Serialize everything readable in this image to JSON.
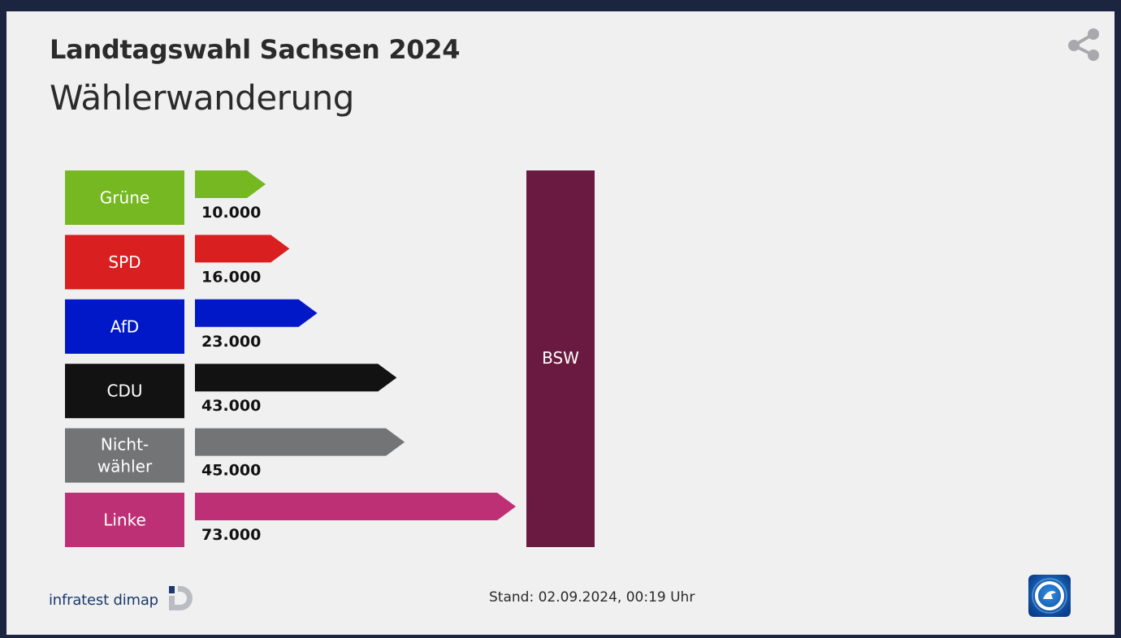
{
  "header": {
    "title": "Landtagswahl Sachsen 2024",
    "subtitle": "Wählerwanderung"
  },
  "icons": {
    "share": "share-icon",
    "brand_logo": "infratest-dimap-logo",
    "broadcaster_logo": "tagesschau-logo"
  },
  "chart_data": {
    "type": "bar",
    "orientation": "horizontal",
    "target": "BSW",
    "target_color": "#6a1a40",
    "categories": [
      {
        "label_lines": [
          "Grüne"
        ],
        "value": 10000,
        "value_label": "10.000",
        "color": "#76b821"
      },
      {
        "label_lines": [
          "SPD"
        ],
        "value": 16000,
        "value_label": "16.000",
        "color": "#d91f1f"
      },
      {
        "label_lines": [
          "AfD"
        ],
        "value": 23000,
        "value_label": "23.000",
        "color": "#0018c8"
      },
      {
        "label_lines": [
          "CDU"
        ],
        "value": 43000,
        "value_label": "43.000",
        "color": "#121212"
      },
      {
        "label_lines": [
          "Nicht-",
          "wähler"
        ],
        "value": 45000,
        "value_label": "45.000",
        "color": "#737475"
      },
      {
        "label_lines": [
          "Linke"
        ],
        "value": 73000,
        "value_label": "73.000",
        "color": "#be3075"
      }
    ],
    "xlim": [
      0,
      73000
    ]
  },
  "footer": {
    "brand": "infratest dimap",
    "stand": "Stand:  02.09.2024, 00:19 Uhr"
  }
}
